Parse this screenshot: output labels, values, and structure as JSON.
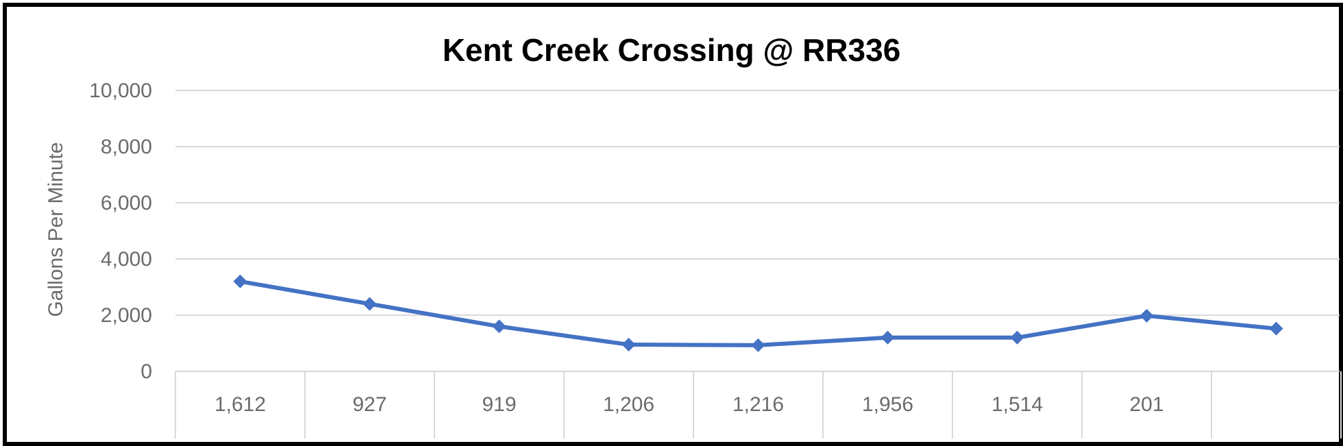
{
  "chart_data": {
    "type": "line",
    "title": "Kent Creek Crossing @ RR336",
    "xlabel": "",
    "ylabel": "Gallons Per Minute",
    "ylim": [
      0,
      10000
    ],
    "yticks": [
      "0",
      "2,000",
      "4,000",
      "6,000",
      "8,000",
      "10,000"
    ],
    "ytick_values": [
      0,
      2000,
      4000,
      6000,
      8000,
      10000
    ],
    "categories": [
      "1,612",
      "927",
      "919",
      "1,206",
      "1,216",
      "1,956",
      "1,514",
      "201",
      ""
    ],
    "series": [
      {
        "values": [
          3200,
          2400,
          1600,
          950,
          930,
          1200,
          1200,
          1980,
          1520
        ]
      }
    ],
    "grid": true,
    "legend": "none",
    "line_color": "#4472C4",
    "grid_color": "#d9d9d9",
    "tick_color": "#6b6b6b"
  }
}
